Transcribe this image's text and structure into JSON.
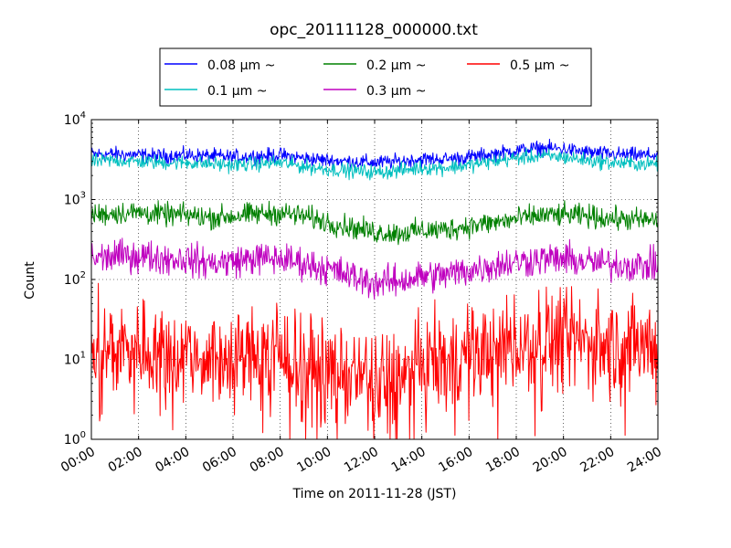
{
  "chart_data": {
    "type": "line",
    "title": "opc_20111128_000000.txt",
    "xlabel": "Time on 2011-11-28 (JST)",
    "ylabel": "Count",
    "y_scale": "log",
    "ylim": [
      1,
      10000
    ],
    "xlim": [
      0,
      24
    ],
    "x_unit": "hours",
    "grid": true,
    "grid_style": "dotted",
    "legend_placement": "top-center, above plot",
    "x_tick_labels": [
      "00:00",
      "02:00",
      "04:00",
      "06:00",
      "08:00",
      "10:00",
      "12:00",
      "14:00",
      "16:00",
      "18:00",
      "20:00",
      "22:00",
      "24:00"
    ],
    "y_tick_labels": [
      {
        "base": "10",
        "exp": "0"
      },
      {
        "base": "10",
        "exp": "1"
      },
      {
        "base": "10",
        "exp": "2"
      },
      {
        "base": "10",
        "exp": "3"
      },
      {
        "base": "10",
        "exp": "4"
      }
    ],
    "x": [
      0,
      1,
      2,
      3,
      4,
      5,
      6,
      7,
      8,
      9,
      10,
      11,
      12,
      13,
      14,
      15,
      16,
      17,
      18,
      19,
      20,
      21,
      22,
      23,
      24
    ],
    "series": [
      {
        "name": "0.08 μm ~",
        "color": "#0000ff",
        "values": [
          3700,
          3700,
          3600,
          3500,
          3600,
          3500,
          3400,
          3500,
          3600,
          3300,
          3100,
          3000,
          2900,
          3000,
          3200,
          3200,
          3400,
          3700,
          4100,
          4400,
          4300,
          3900,
          3700,
          3600,
          3600
        ]
      },
      {
        "name": "0.1 μm ~",
        "color": "#00bfbf",
        "values": [
          3000,
          3100,
          3000,
          2900,
          2900,
          2800,
          2700,
          2800,
          2900,
          2600,
          2400,
          2300,
          2200,
          2300,
          2500,
          2500,
          2700,
          3000,
          3300,
          3500,
          3400,
          3100,
          2900,
          2800,
          2800
        ]
      },
      {
        "name": "0.2 μm ~",
        "color": "#008000",
        "values": [
          640,
          680,
          690,
          650,
          640,
          600,
          620,
          660,
          680,
          620,
          520,
          450,
          390,
          380,
          410,
          420,
          470,
          510,
          570,
          630,
          640,
          620,
          580,
          560,
          550
        ]
      },
      {
        "name": "0.3 μm ~",
        "color": "#bf00bf",
        "values": [
          180,
          195,
          200,
          185,
          180,
          160,
          170,
          185,
          180,
          160,
          135,
          110,
          90,
          95,
          110,
          115,
          130,
          150,
          165,
          180,
          180,
          165,
          155,
          150,
          150
        ]
      },
      {
        "name": "0.5 μm ~",
        "color": "#ff0000",
        "values": [
          13,
          14,
          15,
          13,
          12,
          11,
          10,
          12,
          11,
          10,
          7,
          6,
          5,
          6,
          8,
          10,
          11,
          13,
          16,
          19,
          18,
          17,
          16,
          15,
          15
        ]
      }
    ]
  }
}
